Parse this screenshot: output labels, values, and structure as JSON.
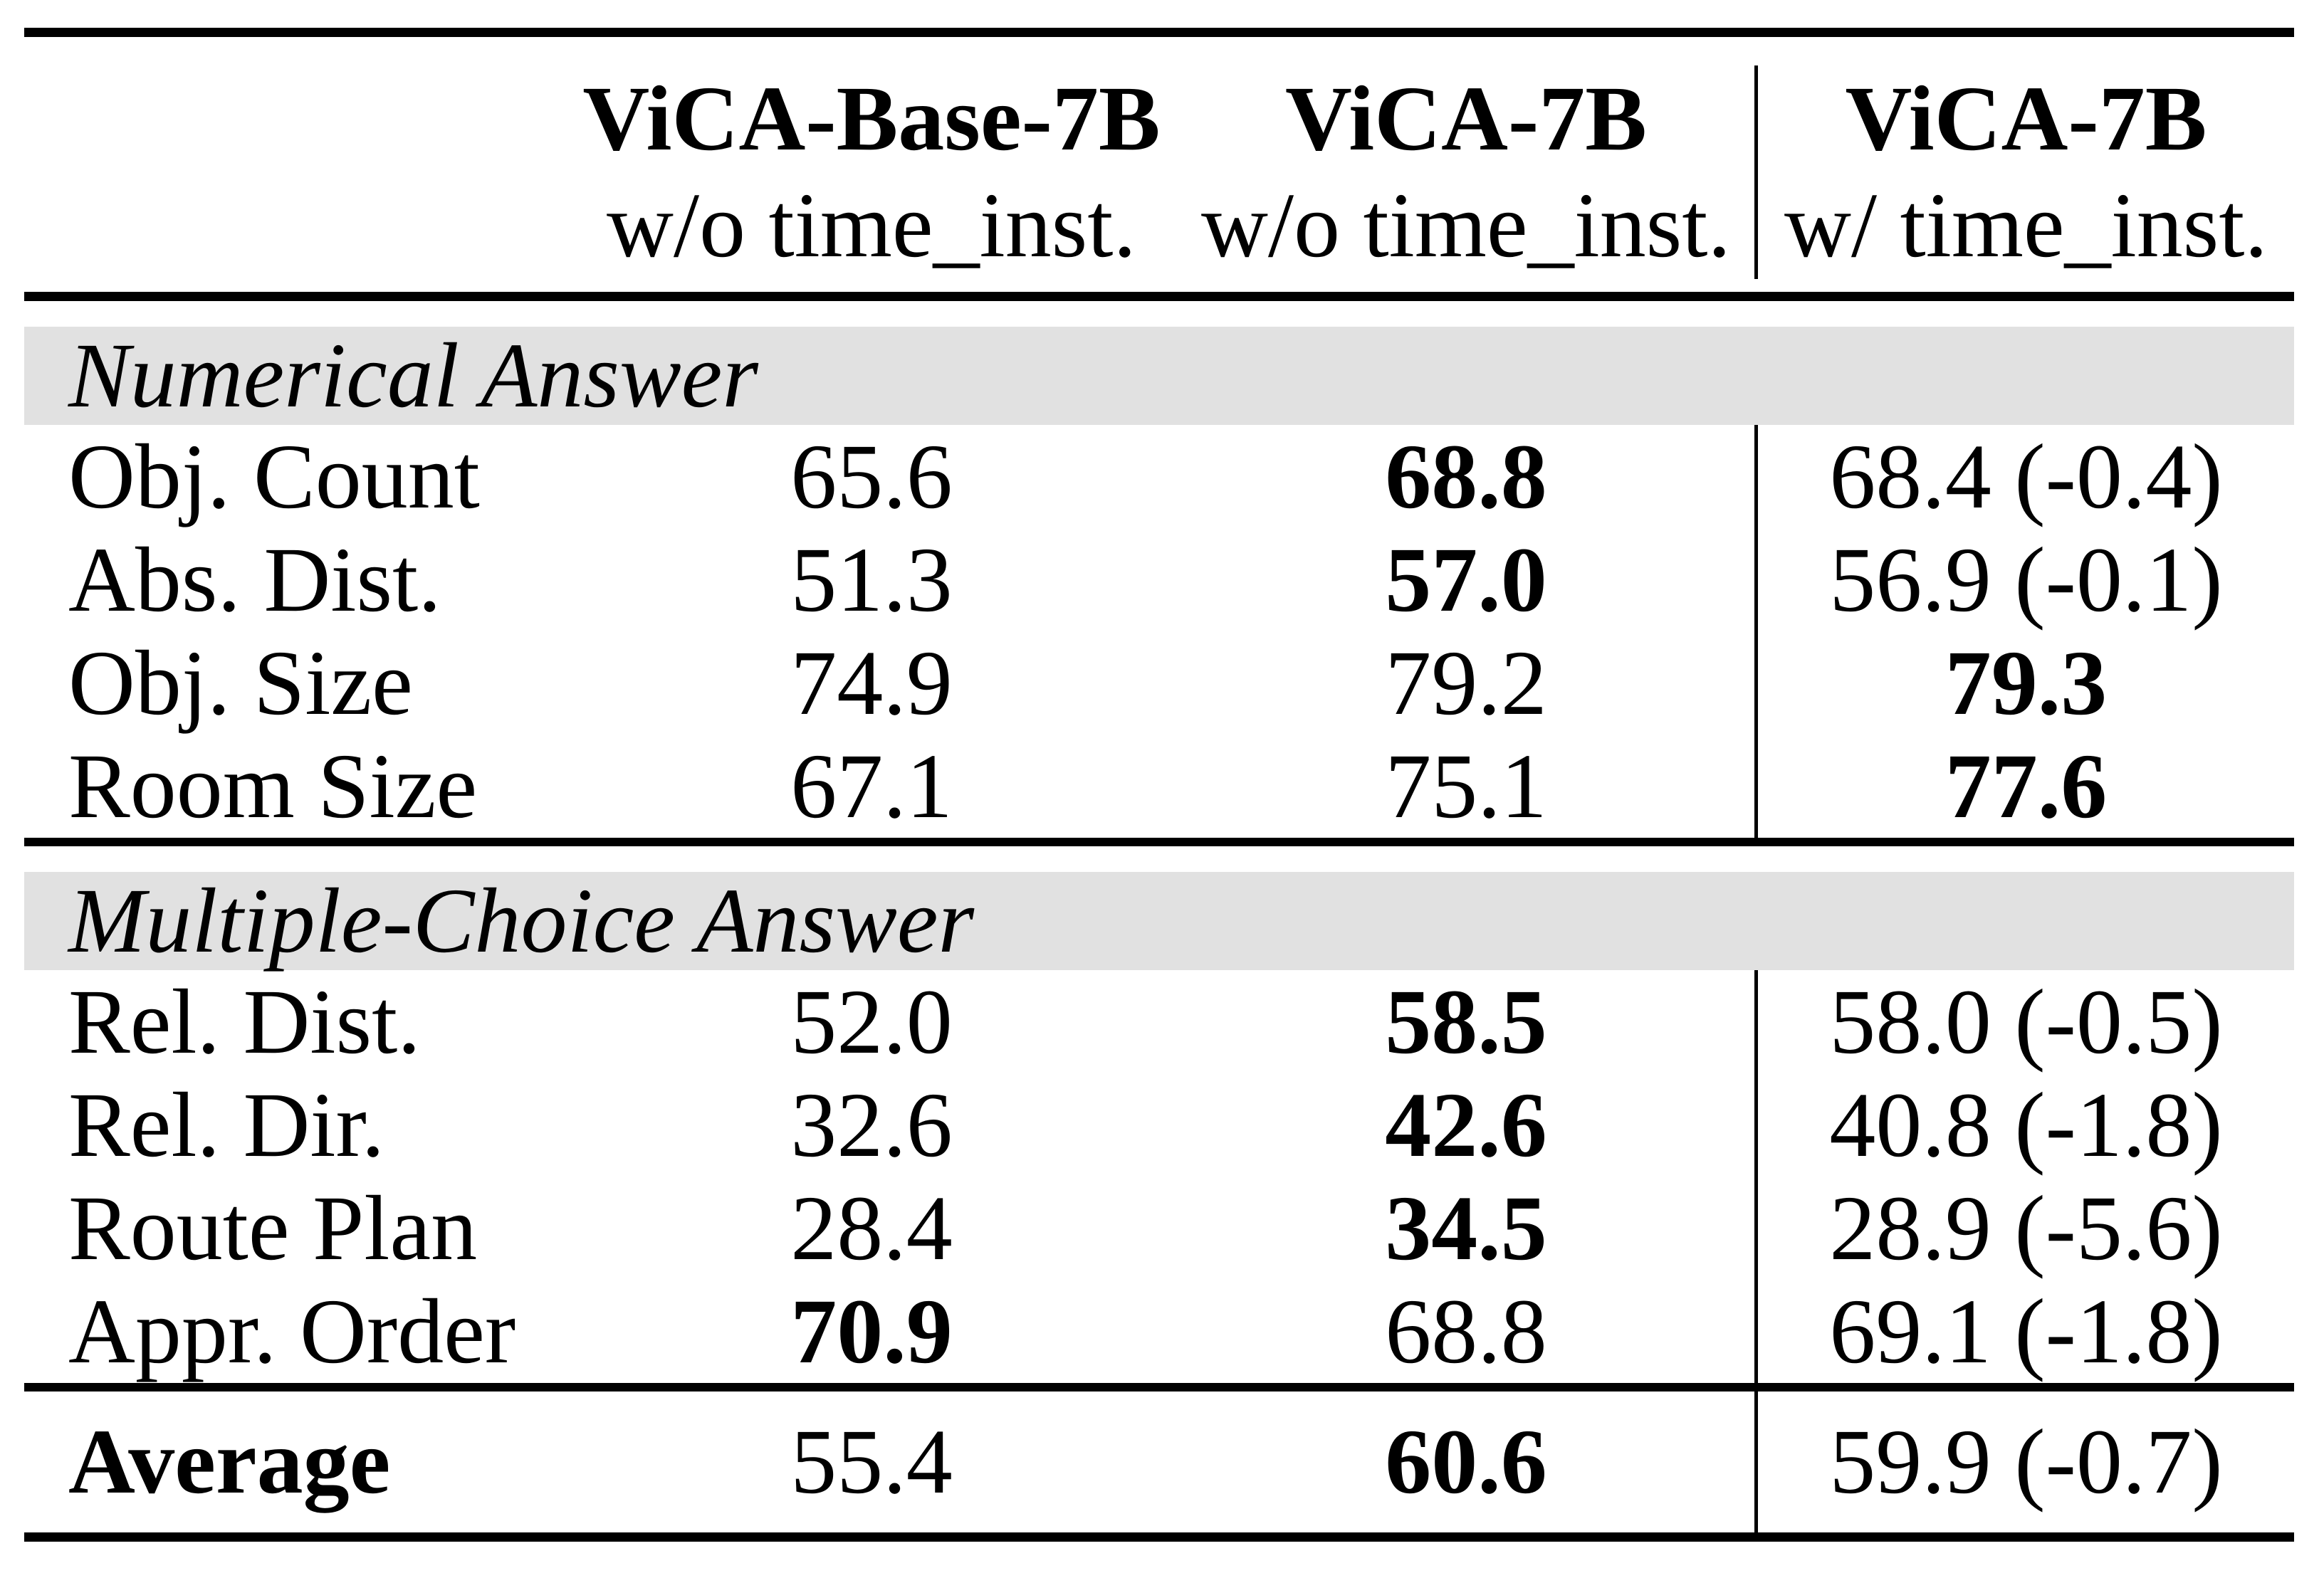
{
  "colors": {
    "section_band_bg": "#e1e1e1",
    "text": "#000000",
    "rule": "#000000"
  },
  "header": {
    "columns": [
      {
        "title": "ViCA-Base-7B",
        "subtitle": "w/o time_inst."
      },
      {
        "title": "ViCA-7B",
        "subtitle": "w/o time_inst."
      },
      {
        "title": "ViCA-7B",
        "subtitle": "w/ time_inst."
      }
    ]
  },
  "sections": [
    {
      "title": "Numerical Answer",
      "rows": [
        {
          "label": "Obj. Count",
          "values": [
            {
              "text": "65.6",
              "bold": false
            },
            {
              "text": "68.8",
              "bold": true
            },
            {
              "text": "68.4 (-0.4)",
              "bold": false
            }
          ]
        },
        {
          "label": "Abs. Dist.",
          "values": [
            {
              "text": "51.3",
              "bold": false
            },
            {
              "text": "57.0",
              "bold": true
            },
            {
              "text": "56.9 (-0.1)",
              "bold": false
            }
          ]
        },
        {
          "label": "Obj. Size",
          "values": [
            {
              "text": "74.9",
              "bold": false
            },
            {
              "text": "79.2",
              "bold": false
            },
            {
              "text": "79.3",
              "bold": true
            }
          ]
        },
        {
          "label": "Room Size",
          "values": [
            {
              "text": "67.1",
              "bold": false
            },
            {
              "text": "75.1",
              "bold": false
            },
            {
              "text": "77.6",
              "bold": true
            }
          ]
        }
      ]
    },
    {
      "title": "Multiple-Choice Answer",
      "rows": [
        {
          "label": "Rel. Dist.",
          "values": [
            {
              "text": "52.0",
              "bold": false
            },
            {
              "text": "58.5",
              "bold": true
            },
            {
              "text": "58.0 (-0.5)",
              "bold": false
            }
          ]
        },
        {
          "label": "Rel. Dir.",
          "values": [
            {
              "text": "32.6",
              "bold": false
            },
            {
              "text": "42.6",
              "bold": true
            },
            {
              "text": "40.8 (-1.8)",
              "bold": false
            }
          ]
        },
        {
          "label": "Route Plan",
          "values": [
            {
              "text": "28.4",
              "bold": false
            },
            {
              "text": "34.5",
              "bold": true
            },
            {
              "text": "28.9 (-5.6)",
              "bold": false
            }
          ]
        },
        {
          "label": "Appr. Order",
          "values": [
            {
              "text": "70.9",
              "bold": true
            },
            {
              "text": "68.8",
              "bold": false
            },
            {
              "text": "69.1 (-1.8)",
              "bold": false
            }
          ]
        }
      ]
    }
  ],
  "footer": {
    "label": "Average",
    "values": [
      {
        "text": "55.4",
        "bold": false
      },
      {
        "text": "60.6",
        "bold": true
      },
      {
        "text": "59.9 (-0.7)",
        "bold": false
      }
    ]
  }
}
